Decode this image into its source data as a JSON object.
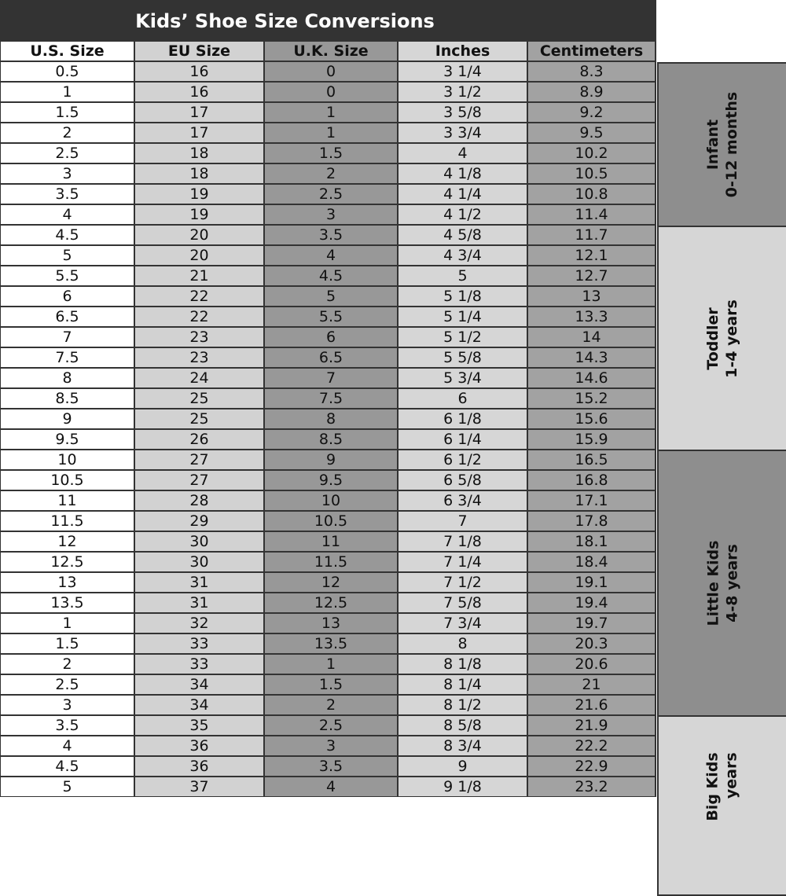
{
  "title": "Kids’ Shoe Size Conversions",
  "headers": [
    "U.S. Size",
    "EU Size",
    "U.K. Size",
    "Inches",
    "Centimeters"
  ],
  "rows": [
    [
      "0.5",
      "16",
      "0",
      "3 1/4",
      "8.3"
    ],
    [
      "1",
      "16",
      "0",
      "3 1/2",
      "8.9"
    ],
    [
      "1.5",
      "17",
      "1",
      "3 5/8",
      "9.2"
    ],
    [
      "2",
      "17",
      "1",
      "3 3/4",
      "9.5"
    ],
    [
      "2.5",
      "18",
      "1.5",
      "4",
      "10.2"
    ],
    [
      "3",
      "18",
      "2",
      "4 1/8",
      "10.5"
    ],
    [
      "3.5",
      "19",
      "2.5",
      "4 1/4",
      "10.8"
    ],
    [
      "4",
      "19",
      "3",
      "4 1/2",
      "11.4"
    ],
    [
      "4.5",
      "20",
      "3.5",
      "4 5/8",
      "11.7"
    ],
    [
      "5",
      "20",
      "4",
      "4 3/4",
      "12.1"
    ],
    [
      "5.5",
      "21",
      "4.5",
      "5",
      "12.7"
    ],
    [
      "6",
      "22",
      "5",
      "5 1/8",
      "13"
    ],
    [
      "6.5",
      "22",
      "5.5",
      "5 1/4",
      "13.3"
    ],
    [
      "7",
      "23",
      "6",
      "5 1/2",
      "14"
    ],
    [
      "7.5",
      "23",
      "6.5",
      "5 5/8",
      "14.3"
    ],
    [
      "8",
      "24",
      "7",
      "5 3/4",
      "14.6"
    ],
    [
      "8.5",
      "25",
      "7.5",
      "6",
      "15.2"
    ],
    [
      "9",
      "25",
      "8",
      "6 1/8",
      "15.6"
    ],
    [
      "9.5",
      "26",
      "8.5",
      "6 1/4",
      "15.9"
    ],
    [
      "10",
      "27",
      "9",
      "6 1/2",
      "16.5"
    ],
    [
      "10.5",
      "27",
      "9.5",
      "6 5/8",
      "16.8"
    ],
    [
      "11",
      "28",
      "10",
      "6 3/4",
      "17.1"
    ],
    [
      "11.5",
      "29",
      "10.5",
      "7",
      "17.8"
    ],
    [
      "12",
      "30",
      "11",
      "7 1/8",
      "18.1"
    ],
    [
      "12.5",
      "30",
      "11.5",
      "7 1/4",
      "18.4"
    ],
    [
      "13",
      "31",
      "12",
      "7 1/2",
      "19.1"
    ],
    [
      "13.5",
      "31",
      "12.5",
      "7 5/8",
      "19.4"
    ],
    [
      "1",
      "32",
      "13",
      "7 3/4",
      "19.7"
    ],
    [
      "1.5",
      "33",
      "13.5",
      "8",
      "20.3"
    ],
    [
      "2",
      "33",
      "1",
      "8 1/8",
      "20.6"
    ],
    [
      "2.5",
      "34",
      "1.5",
      "8 1/4",
      "21"
    ],
    [
      "3",
      "34",
      "2",
      "8 1/2",
      "21.6"
    ],
    [
      "3.5",
      "35",
      "2.5",
      "8 5/8",
      "21.9"
    ],
    [
      "4",
      "36",
      "3",
      "8 3/4",
      "22.2"
    ],
    [
      "4.5",
      "36",
      "3.5",
      "9",
      "22.9"
    ],
    [
      "5",
      "37",
      "4",
      "9 1/8",
      "23.2"
    ]
  ],
  "groups": [
    {
      "name": "Infant",
      "range": "0-12 months",
      "color": "#8e8e8e"
    },
    {
      "name": "Toddler",
      "range": "1-4 years",
      "color": "#d6d6d6"
    },
    {
      "name": "Little Kids",
      "range": "4-8 years",
      "color": "#8e8e8e"
    },
    {
      "name": "Big Kids",
      "range": "years",
      "color": "#d6d6d6"
    }
  ]
}
